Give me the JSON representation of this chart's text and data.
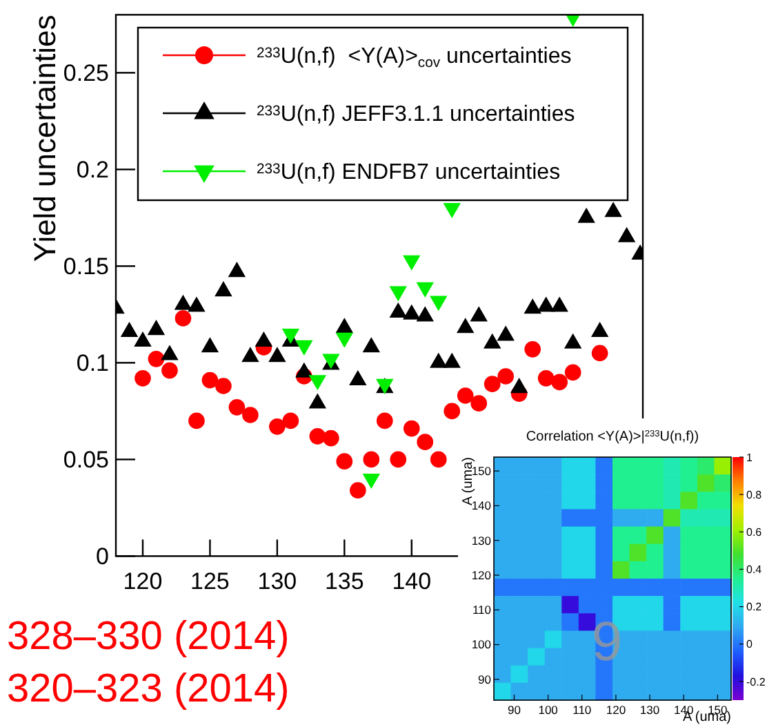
{
  "chart_data": [
    {
      "type": "scatter",
      "ylabel": "Yield uncertainties",
      "xlim": [
        118,
        157.2
      ],
      "xticks": [
        120,
        125,
        130,
        135,
        140
      ],
      "ylim": [
        0,
        0.28
      ],
      "yticks": [
        0,
        0.05,
        0.1,
        0.15,
        0.2,
        0.25
      ],
      "grid": false,
      "legend": "top",
      "annotations": [
        "328–330 (2014)",
        "320–323 (2014)"
      ],
      "series": [
        {
          "name": "$^{233}$U(n,f)  <Y(A)>$_{cov}$ uncertainties",
          "color": "#ff0000",
          "marker": "circle",
          "x": [
            120,
            121,
            122,
            123,
            124,
            125,
            126,
            127,
            128,
            129,
            130,
            131,
            132,
            133,
            134,
            135,
            136,
            137,
            138,
            139,
            140,
            141,
            142,
            143,
            144,
            145,
            146,
            147,
            148,
            149,
            150,
            151,
            152,
            154
          ],
          "values": [
            0.092,
            0.102,
            0.096,
            0.123,
            0.07,
            0.091,
            0.088,
            0.077,
            0.073,
            0.108,
            0.067,
            0.07,
            0.093,
            0.062,
            0.061,
            0.049,
            0.034,
            0.05,
            0.07,
            0.05,
            0.066,
            0.059,
            0.05,
            0.075,
            0.083,
            0.079,
            0.089,
            0.093,
            0.084,
            0.107,
            0.092,
            0.09,
            0.095,
            0.105
          ]
        },
        {
          "name": "$^{233}$U(n,f) JEFF3.1.1 uncertainties",
          "color": "#000000",
          "marker": "triangle",
          "x": [
            118,
            119,
            120,
            121,
            122,
            123,
            124,
            125,
            126,
            127,
            128,
            129,
            130,
            131,
            132,
            133,
            134,
            135,
            136,
            137,
            138,
            139,
            140,
            141,
            142,
            143,
            144,
            145,
            146,
            147,
            148,
            149,
            150,
            151,
            152,
            153,
            154,
            155,
            156,
            157
          ],
          "values": [
            0.128,
            0.116,
            0.111,
            0.117,
            0.104,
            0.13,
            0.129,
            0.108,
            0.137,
            0.147,
            0.103,
            0.111,
            0.103,
            0.111,
            0.095,
            0.079,
            0.099,
            0.118,
            0.091,
            0.108,
            0.087,
            0.126,
            0.125,
            0.124,
            0.1,
            0.1,
            0.118,
            0.124,
            0.11,
            0.114,
            0.087,
            0.128,
            0.129,
            0.129,
            0.11,
            0.175,
            0.116,
            0.178,
            0.165,
            0.156
          ]
        },
        {
          "name": "$^{233}$U(n,f) ENDFB7 uncertainties",
          "color": "#00ee00",
          "marker": "triangle-down",
          "x": [
            131,
            132,
            133,
            134,
            135,
            137,
            138,
            139,
            140,
            141,
            142,
            143,
            152
          ],
          "values": [
            0.115,
            0.109,
            0.091,
            0.102,
            0.113,
            0.04,
            0.089,
            0.137,
            0.153,
            0.139,
            0.132,
            0.18,
            0.279
          ]
        }
      ]
    },
    {
      "type": "heatmap",
      "title": "Correlation <Y(A)>|$^{233}$U(n,f))",
      "xlabel": "A (uma)",
      "ylabel": "A (uma)",
      "xlim": [
        84,
        154
      ],
      "xticks": [
        90,
        100,
        110,
        120,
        130,
        140,
        150
      ],
      "ylim": [
        84,
        154
      ],
      "yticks": [
        90,
        100,
        110,
        120,
        130,
        140,
        150
      ],
      "clim": [
        -0.3,
        1
      ],
      "cticks": [
        {
          "value": -0.2,
          "label": "-0.2"
        },
        0,
        0.2,
        0.4,
        0.6,
        0.8,
        1
      ],
      "annotations": [
        "9"
      ],
      "x": [
        86.5,
        91.5,
        96.5,
        101.5,
        106.5,
        111.5,
        116.5,
        121.5,
        126.5,
        131.5,
        136.5,
        141.5,
        146.5,
        151.5
      ],
      "y": [
        151.5,
        146.5,
        141.5,
        136.5,
        131.5,
        126.5,
        121.5,
        116.5,
        111.5,
        106.5,
        101.5,
        96.5,
        91.5,
        86.5
      ],
      "cells": [
        [
          0.1,
          0.1,
          0.1,
          0.1,
          0.2,
          0.2,
          0,
          0.35,
          0.35,
          0.35,
          0.3,
          0.35,
          0.4,
          0.6
        ],
        [
          0.1,
          0.1,
          0.1,
          0.1,
          0.2,
          0.2,
          0,
          0.35,
          0.35,
          0.35,
          0.3,
          0.35,
          0.5,
          0.4
        ],
        [
          0.1,
          0.1,
          0.1,
          0.1,
          0.2,
          0.2,
          0,
          0.35,
          0.35,
          0.35,
          0.3,
          0.5,
          0.35,
          0.35
        ],
        [
          0.1,
          0.1,
          0.1,
          0.1,
          0,
          0,
          0,
          0.1,
          0.1,
          0.1,
          0.5,
          0.3,
          0.3,
          0.3
        ],
        [
          0.1,
          0.1,
          0.1,
          0.1,
          0.2,
          0.2,
          0,
          0.35,
          0.35,
          0.5,
          0.1,
          0.35,
          0.35,
          0.35
        ],
        [
          0.1,
          0.1,
          0.1,
          0.1,
          0.2,
          0.2,
          0,
          0.35,
          0.5,
          0.35,
          0.1,
          0.35,
          0.35,
          0.35
        ],
        [
          0.1,
          0.1,
          0.1,
          0.1,
          0.2,
          0.2,
          0,
          0.5,
          0.35,
          0.35,
          0.1,
          0.35,
          0.35,
          0.35
        ],
        [
          0,
          0,
          0,
          0,
          0,
          0,
          0,
          0,
          0,
          0,
          0,
          0,
          0,
          0
        ],
        [
          0.1,
          0.1,
          0.1,
          0.1,
          -0.2,
          0,
          0,
          0.2,
          0.2,
          0.2,
          0,
          0.2,
          0.2,
          0.2
        ],
        [
          0.1,
          0.1,
          0.1,
          0.1,
          0,
          -0.2,
          0,
          0.2,
          0.2,
          0.2,
          0,
          0.2,
          0.2,
          0.2
        ],
        [
          0.1,
          0.1,
          0.1,
          0.2,
          0.1,
          0.1,
          0,
          0.1,
          0.1,
          0.1,
          0.1,
          0.1,
          0.1,
          0.1
        ],
        [
          0.1,
          0.1,
          0.2,
          0.1,
          0.1,
          0.1,
          0,
          0.1,
          0.1,
          0.1,
          0.1,
          0.1,
          0.1,
          0.1
        ],
        [
          0.1,
          0.2,
          0.1,
          0.1,
          0.1,
          0.1,
          0,
          0.1,
          0.1,
          0.1,
          0.1,
          0.1,
          0.1,
          0.1
        ],
        [
          0.2,
          0.1,
          0.1,
          0.1,
          0.1,
          0.1,
          0,
          0.1,
          0.1,
          0.1,
          0.1,
          0.1,
          0.1,
          0.1
        ]
      ]
    }
  ]
}
